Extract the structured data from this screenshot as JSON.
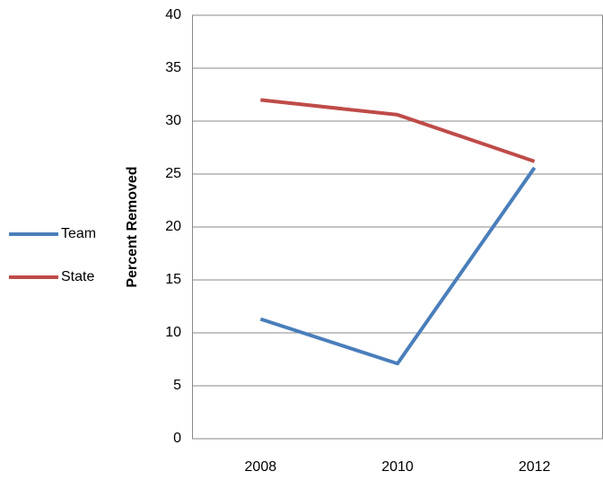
{
  "chart_data": {
    "type": "line",
    "y_label": "Percent Removed",
    "categories": [
      "2008",
      "2010",
      "2012"
    ],
    "series": [
      {
        "name": "Team",
        "color": "#4a7ebb",
        "values": [
          11.3,
          7.1,
          25.6
        ]
      },
      {
        "name": "State",
        "color": "#be4b48",
        "values": [
          32,
          30.6,
          26.2
        ]
      }
    ],
    "ylim": [
      0,
      40
    ],
    "yticks": [
      0,
      5,
      10,
      15,
      20,
      25,
      30,
      35,
      40
    ],
    "grid": true,
    "legend": "left"
  }
}
